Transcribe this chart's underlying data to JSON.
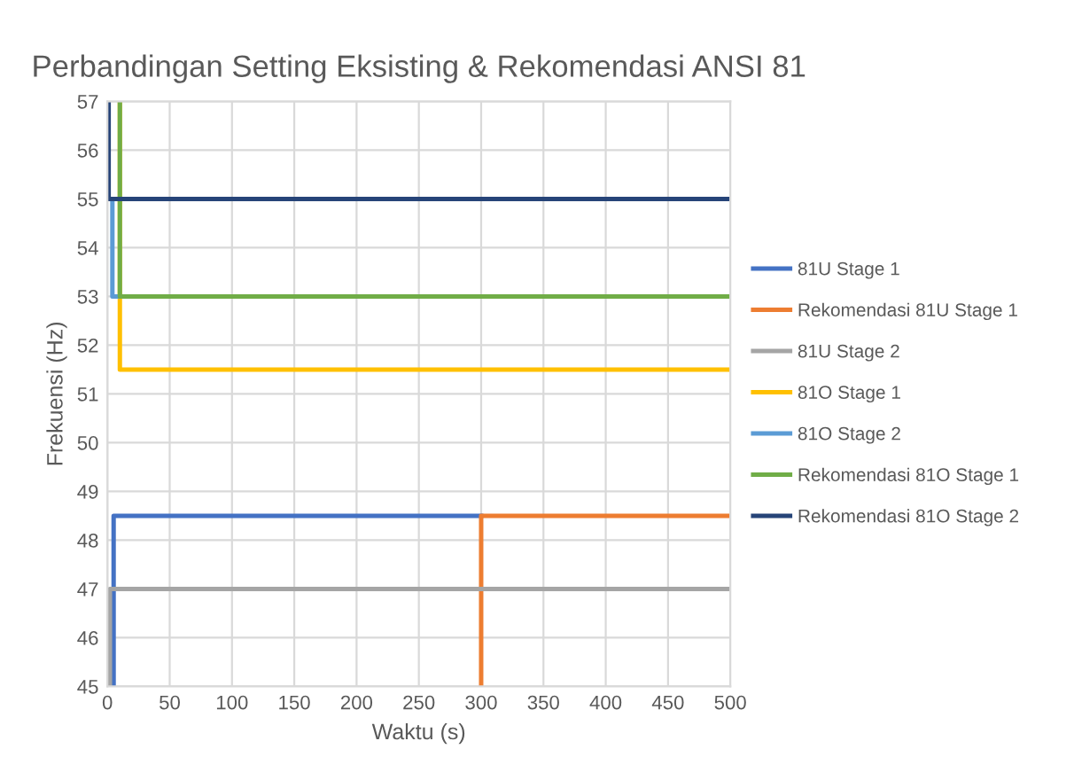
{
  "chart_data": {
    "type": "line",
    "title": "Perbandingan Setting Eksisting & Rekomendasi ANSI 81",
    "xlabel": "Waktu (s)",
    "ylabel": "Frekuensi (Hz)",
    "xlim": [
      0,
      500
    ],
    "xticks": [
      0,
      50,
      100,
      150,
      200,
      250,
      300,
      350,
      400,
      450,
      500
    ],
    "ylim": [
      45,
      57
    ],
    "yticks": [
      45,
      46,
      47,
      48,
      49,
      50,
      51,
      52,
      53,
      54,
      55,
      56,
      57
    ],
    "grid": true,
    "legend": "right",
    "marker": "none",
    "line_style": "solid",
    "series": [
      {
        "name": "81U Stage 1",
        "color": "#4472c4",
        "x": [
          5,
          5,
          300
        ],
        "values": [
          45,
          48.5,
          48.5
        ]
      },
      {
        "name": "Rekomendasi 81U Stage 1",
        "color": "#ed7d31",
        "x": [
          300,
          300,
          500
        ],
        "values": [
          45,
          48.5,
          48.5
        ]
      },
      {
        "name": "81U Stage 2",
        "color": "#a5a5a5",
        "x": [
          2,
          2,
          500
        ],
        "values": [
          45,
          47,
          47
        ]
      },
      {
        "name": "81O Stage 1",
        "color": "#ffc000",
        "x": [
          10,
          10,
          500
        ],
        "values": [
          57,
          51.5,
          51.5
        ]
      },
      {
        "name": "81O Stage 2",
        "color": "#5b9bd5",
        "x": [
          4,
          4,
          10
        ],
        "values": [
          55,
          53,
          53
        ]
      },
      {
        "name": "Rekomendasi 81O Stage 1",
        "color": "#70ad47",
        "x": [
          10,
          10,
          500
        ],
        "values": [
          57,
          53,
          53
        ]
      },
      {
        "name": "Rekomendasi 81O Stage 2",
        "color": "#264478",
        "x": [
          1,
          1,
          500
        ],
        "values": [
          57,
          55,
          55
        ]
      }
    ]
  }
}
